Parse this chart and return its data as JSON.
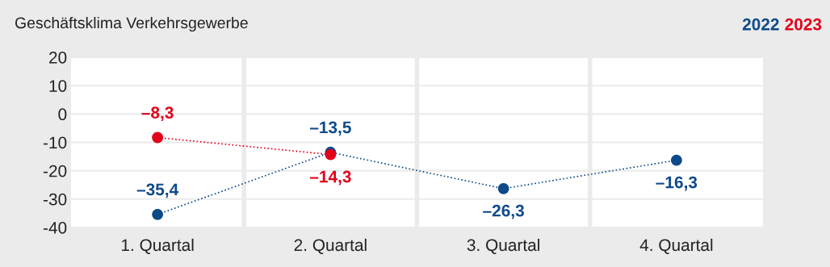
{
  "chart_data": {
    "type": "line",
    "title": "Geschäftsklima Verkehrsgewerbe",
    "categories": [
      "1. Quartal",
      "2. Quartal",
      "3. Quartal",
      "4. Quartal"
    ],
    "series": [
      {
        "name": "2022",
        "color": "#0d4a8a",
        "values": [
          -35.4,
          -13.5,
          -26.3,
          -16.3
        ],
        "value_labels": [
          "–35,4",
          "–13,5",
          "–26,3",
          "–16,3"
        ]
      },
      {
        "name": "2023",
        "color": "#e2001a",
        "values": [
          -8.3,
          -14.3,
          null,
          null
        ],
        "value_labels": [
          "–8,3",
          "–14,3",
          null,
          null
        ]
      }
    ],
    "ylim": [
      -40,
      20
    ],
    "yticks": [
      -40,
      -30,
      -20,
      -10,
      0,
      10,
      20
    ],
    "grid": "y",
    "legend": "top right",
    "marker": "circle",
    "line_style": "dotted"
  }
}
